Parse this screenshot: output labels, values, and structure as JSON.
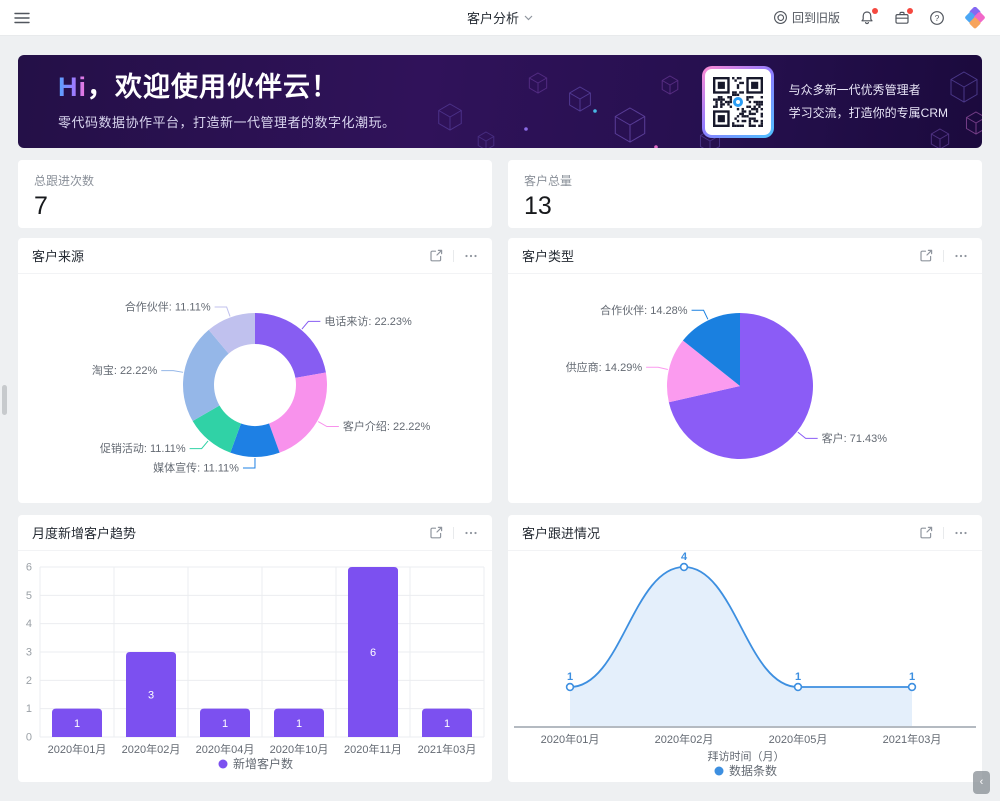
{
  "topbar": {
    "title": "客户分析",
    "back_to_old_label": "回到旧版"
  },
  "banner": {
    "greeting_highlight": "Hi",
    "greeting_rest": "，欢迎使用伙伴云！",
    "subtitle": "零代码数据协作平台，打造新一代管理者的数字化潮玩。",
    "qr_caption_line1": "与众多新一代优秀管理者",
    "qr_caption_line2": "学习交流，打造你的专属CRM"
  },
  "stats": [
    {
      "label": "总跟进次数",
      "value": "7"
    },
    {
      "label": "客户总量",
      "value": "13"
    }
  ],
  "cards": {
    "source": {
      "title": "客户来源"
    },
    "type": {
      "title": "客户类型"
    },
    "trend": {
      "title": "月度新增客户趋势"
    },
    "follow": {
      "title": "客户跟进情况"
    }
  },
  "chart_data": [
    {
      "id": "customer-source",
      "type": "pie",
      "title": "客户来源",
      "donut": true,
      "label_format": "{label}: {value}%",
      "slices": [
        {
          "label": "电话来访",
          "value": 22.23,
          "color": "#875DF2"
        },
        {
          "label": "客户介绍",
          "value": 22.22,
          "color": "#F892EC"
        },
        {
          "label": "媒体宣传",
          "value": 11.11,
          "color": "#1E80E4"
        },
        {
          "label": "促销活动",
          "value": 11.11,
          "color": "#30D2A6"
        },
        {
          "label": "淘宝",
          "value": 22.22,
          "color": "#95B7E8"
        },
        {
          "label": "合作伙伴",
          "value": 11.11,
          "color": "#C0C1EE"
        }
      ]
    },
    {
      "id": "customer-type",
      "type": "pie",
      "title": "客户类型",
      "donut": false,
      "label_format": "{label}: {value}%",
      "slices": [
        {
          "label": "客户",
          "value": 71.43,
          "color": "#8B5CF6"
        },
        {
          "label": "供应商",
          "value": 14.29,
          "color": "#FB9BEF"
        },
        {
          "label": "合作伙伴",
          "value": 14.28,
          "color": "#1A80E0"
        }
      ]
    },
    {
      "id": "monthly-new-customers",
      "type": "bar",
      "title": "月度新增客户趋势",
      "categories": [
        "2020年01月",
        "2020年02月",
        "2020年04月",
        "2020年10月",
        "2020年11月",
        "2021年03月"
      ],
      "values": [
        1,
        3,
        1,
        1,
        6,
        1
      ],
      "series_name": "新增客户数",
      "color": "#7C50F0",
      "ylim": [
        0,
        6
      ],
      "yticks": [
        0,
        1,
        2,
        3,
        4,
        5,
        6
      ],
      "grid": true,
      "legend_position": "bottom"
    },
    {
      "id": "customer-follow-up",
      "type": "line",
      "title": "客户跟进情况",
      "categories": [
        "2020年01月",
        "2020年02月",
        "2020年05月",
        "2021年03月"
      ],
      "values": [
        1,
        4,
        1,
        1
      ],
      "series_name": "数据条数",
      "xlabel": "拜访时间（月）",
      "color": "#3D8FE0",
      "smooth": true,
      "area": true,
      "legend_position": "bottom"
    }
  ]
}
